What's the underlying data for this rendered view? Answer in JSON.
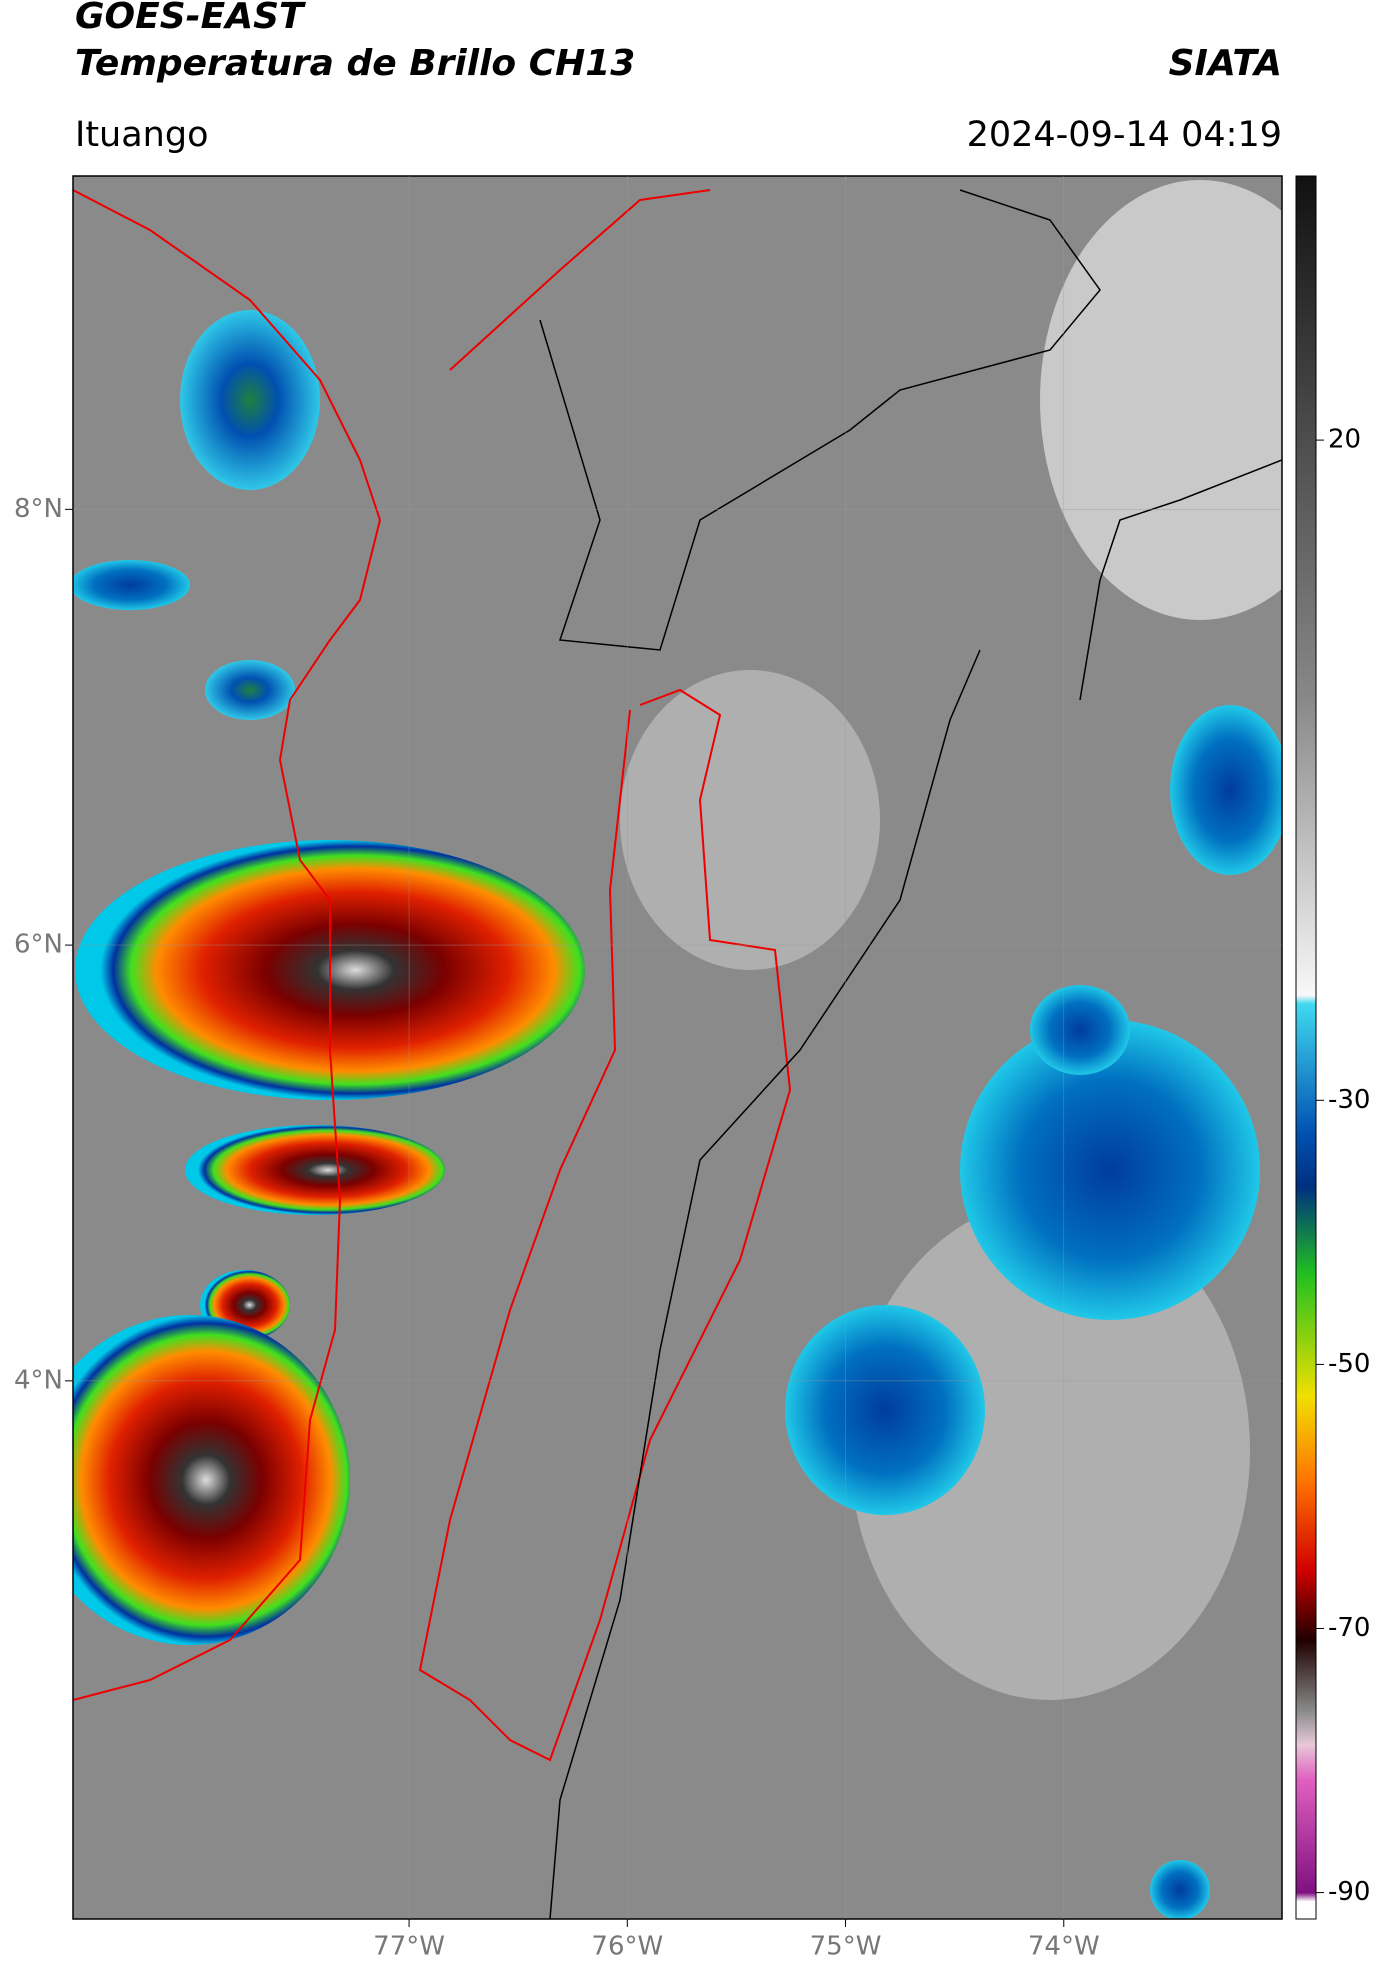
{
  "header": {
    "title": "GOES-EAST",
    "subtitle": "Temperatura de Brillo CH13",
    "org": "SIATA",
    "location": "Ituango",
    "datetime": "2024-09-14 04:19"
  },
  "map": {
    "xlim": [
      -78.54,
      -73.0
    ],
    "ylim": [
      1.53,
      9.53
    ],
    "xticks": [
      {
        "value": -77,
        "label": "77°W"
      },
      {
        "value": -76,
        "label": "76°W"
      },
      {
        "value": -75,
        "label": "75°W"
      },
      {
        "value": -74,
        "label": "74°W"
      }
    ],
    "yticks": [
      {
        "value": 8,
        "label": "8°N"
      },
      {
        "value": 6,
        "label": "6°N"
      },
      {
        "value": 4,
        "label": "4°N"
      }
    ],
    "colorbar": {
      "lim": [
        -92,
        40
      ],
      "ticks": [
        20,
        -30,
        -50,
        -70,
        -90
      ]
    }
  }
}
